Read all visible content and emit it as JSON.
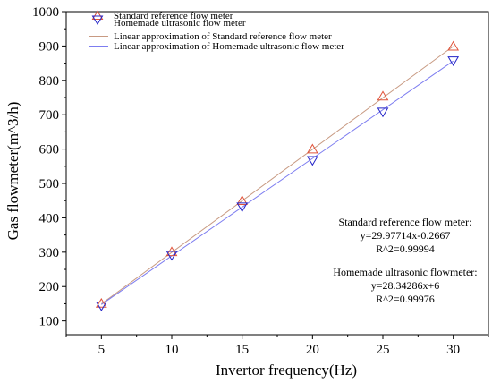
{
  "chart_data": {
    "type": "scatter",
    "xlabel": "Invertor frequency(Hz)",
    "ylabel": "Gas flowmeter(m^3/h)",
    "xlim": [
      2.5,
      32.5
    ],
    "ylim": [
      60,
      1000
    ],
    "xticks": [
      "5",
      "10",
      "15",
      "20",
      "25",
      "30"
    ],
    "yticks": [
      "100",
      "200",
      "300",
      "400",
      "500",
      "600",
      "700",
      "800",
      "900",
      "1000"
    ],
    "series": [
      {
        "name": "Standard reference flow meter",
        "marker": "triangle-up",
        "color": "#e0533a",
        "x": [
          5,
          10,
          15,
          20,
          25,
          30
        ],
        "y": [
          150,
          300,
          449,
          599,
          753,
          898
        ]
      },
      {
        "name": "Homemade ultrasonic flow meter",
        "marker": "triangle-down",
        "color": "#2424c8",
        "x": [
          5,
          10,
          15,
          20,
          25,
          30
        ],
        "y": [
          145,
          292,
          433,
          568,
          709,
          858
        ]
      }
    ],
    "fits": [
      {
        "name": "Linear approximation of Standard reference flow meter",
        "color": "#c89a82",
        "slope": 29.97714,
        "intercept": -0.2667
      },
      {
        "name": "Linear approximation of Homemade ultrasonic flow meter",
        "color": "#7d7df0",
        "slope": 28.34286,
        "intercept": 6
      }
    ],
    "legend_position": "top-left",
    "annotations": [
      {
        "lines": [
          "Standard reference flow meter:",
          "y=29.97714x-0.2667",
          "R^2=0.99994"
        ]
      },
      {
        "lines": [
          "Homemade ultrasonic flowmeter:",
          "y=28.34286x+6",
          "R^2=0.99976"
        ]
      }
    ]
  }
}
